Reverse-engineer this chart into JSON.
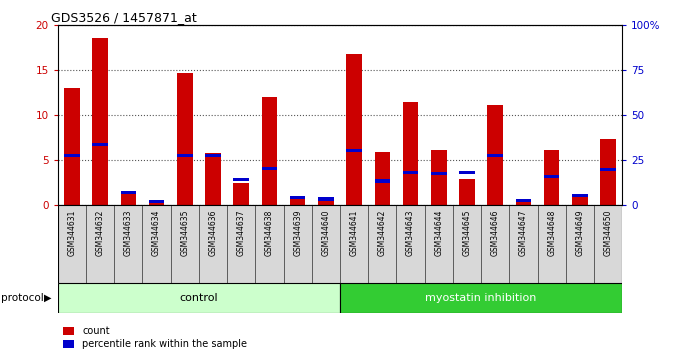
{
  "title": "GDS3526 / 1457871_at",
  "samples": [
    "GSM344631",
    "GSM344632",
    "GSM344633",
    "GSM344634",
    "GSM344635",
    "GSM344636",
    "GSM344637",
    "GSM344638",
    "GSM344639",
    "GSM344640",
    "GSM344641",
    "GSM344642",
    "GSM344643",
    "GSM344644",
    "GSM344645",
    "GSM344646",
    "GSM344647",
    "GSM344648",
    "GSM344649",
    "GSM344650"
  ],
  "count": [
    13.0,
    18.5,
    1.4,
    0.4,
    14.7,
    5.8,
    2.5,
    12.0,
    0.9,
    0.7,
    16.8,
    5.9,
    11.4,
    6.1,
    2.9,
    11.1,
    0.5,
    6.1,
    1.1,
    7.4
  ],
  "percentile": [
    5.5,
    6.7,
    1.4,
    0.4,
    5.5,
    5.5,
    2.9,
    4.1,
    0.9,
    0.7,
    6.1,
    2.7,
    3.6,
    3.5,
    3.6,
    5.5,
    0.5,
    3.2,
    1.1,
    4.0
  ],
  "bar_color_red": "#cc0000",
  "bar_color_blue": "#0000cc",
  "bar_width": 0.55,
  "ylim_left": [
    0,
    20
  ],
  "ylim_right": [
    0,
    100
  ],
  "yticks_left": [
    0,
    5,
    10,
    15,
    20
  ],
  "yticks_right": [
    0,
    25,
    50,
    75,
    100
  ],
  "ytick_labels_right": [
    "0",
    "25",
    "50",
    "75",
    "100%"
  ],
  "groups": [
    {
      "label": "control",
      "start": 0,
      "end": 9,
      "color": "#ccffcc"
    },
    {
      "label": "myostatin inhibition",
      "start": 10,
      "end": 19,
      "color": "#33cc33"
    }
  ],
  "protocol_label": "protocol",
  "legend_items": [
    {
      "label": "count",
      "color": "#cc0000"
    },
    {
      "label": "percentile rank within the sample",
      "color": "#0000cc"
    }
  ],
  "grid_color": "#555555",
  "background_color": "#ffffff",
  "tick_label_color_left": "#cc0000",
  "tick_label_color_right": "#0000cc",
  "sample_bg_color": "#d8d8d8"
}
